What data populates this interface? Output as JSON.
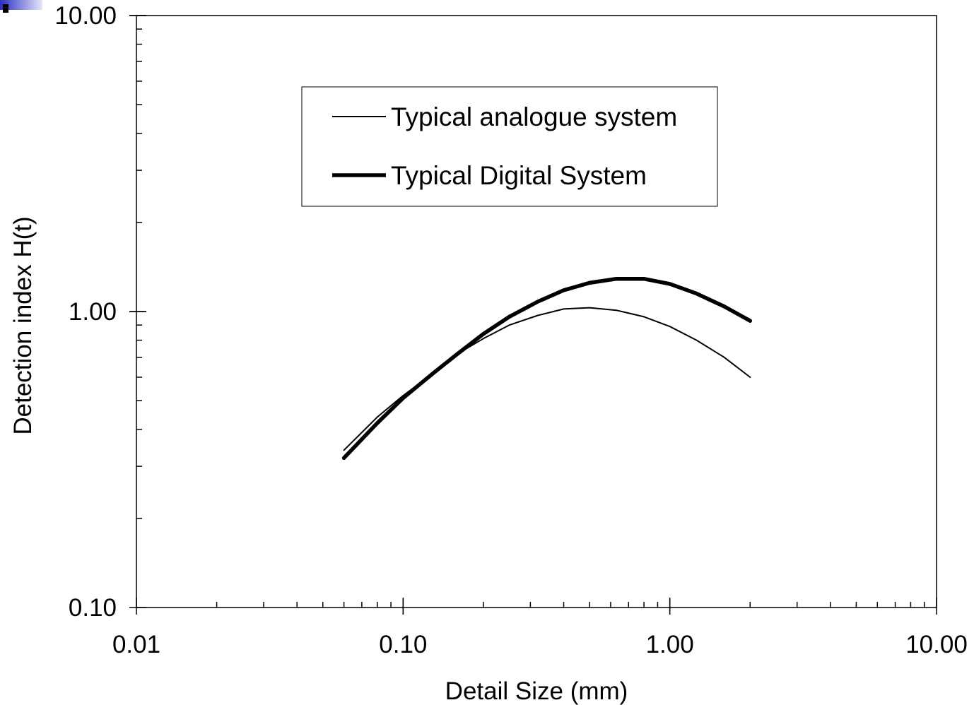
{
  "chart_data": {
    "type": "line",
    "xlabel": "Detail Size (mm)",
    "ylabel": "Detection index H(t)",
    "xscale": "log",
    "yscale": "log",
    "xlim": [
      0.01,
      10.0
    ],
    "ylim": [
      0.1,
      10.0
    ],
    "x_tick_labels": [
      "0.01",
      "0.10",
      "1.00",
      "10.00"
    ],
    "y_tick_labels": [
      "0.10",
      "1.00",
      "10.00"
    ],
    "legend_position": "top-center",
    "series": [
      {
        "name": "Typical analogue system",
        "line": "thin",
        "x": [
          0.06,
          0.08,
          0.1,
          0.13,
          0.16,
          0.2,
          0.25,
          0.32,
          0.4,
          0.5,
          0.63,
          0.8,
          1.0,
          1.26,
          1.6,
          2.0
        ],
        "y": [
          0.34,
          0.44,
          0.52,
          0.62,
          0.72,
          0.81,
          0.9,
          0.97,
          1.02,
          1.03,
          1.01,
          0.96,
          0.89,
          0.8,
          0.7,
          0.6
        ]
      },
      {
        "name": "Typical Digital System",
        "line": "thick",
        "x": [
          0.06,
          0.08,
          0.1,
          0.13,
          0.16,
          0.2,
          0.25,
          0.32,
          0.4,
          0.5,
          0.63,
          0.8,
          1.0,
          1.26,
          1.6,
          2.0
        ],
        "y": [
          0.32,
          0.42,
          0.51,
          0.62,
          0.72,
          0.84,
          0.96,
          1.08,
          1.18,
          1.25,
          1.29,
          1.29,
          1.24,
          1.15,
          1.04,
          0.93
        ]
      }
    ]
  }
}
